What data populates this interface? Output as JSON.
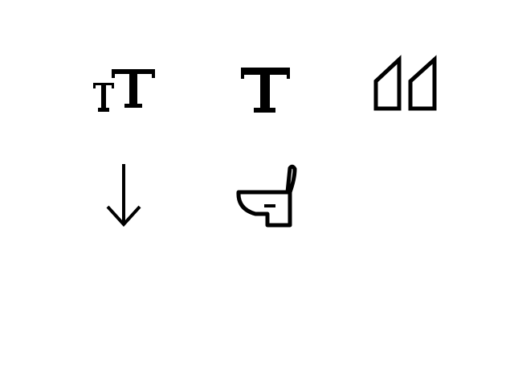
{
  "icons": [
    {
      "name": "text-size-icon"
    },
    {
      "name": "text-icon"
    },
    {
      "name": "quote-icon"
    },
    {
      "name": "arrow-down-icon"
    },
    {
      "name": "toilet-icon"
    }
  ],
  "colors": {
    "background": "#ffffff",
    "foreground": "#000000"
  }
}
